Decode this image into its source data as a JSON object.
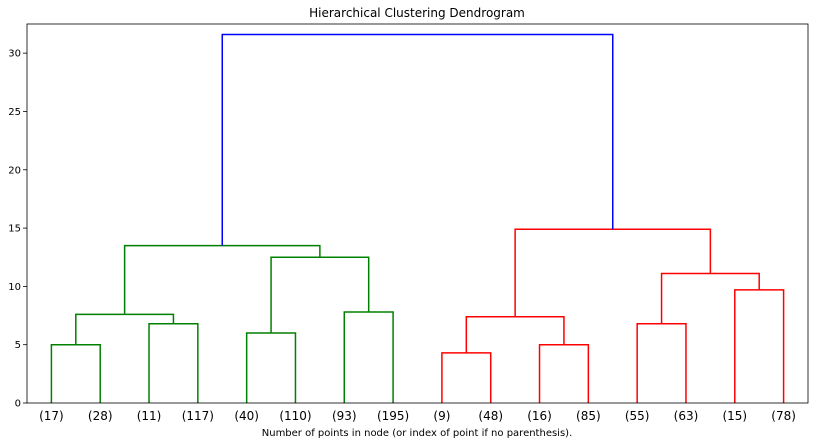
{
  "chart_data": {
    "type": "dendrogram",
    "title": "Hierarchical Clustering Dendrogram",
    "xlabel": "Number of points in node (or index of point if no parenthesis).",
    "ylabel": "",
    "ylim": [
      0,
      32.5
    ],
    "y_ticks": [
      0,
      5,
      10,
      15,
      20,
      25,
      30
    ],
    "grid": false,
    "leaves": [
      "(17)",
      "(28)",
      "(11)",
      "(117)",
      "(40)",
      "(110)",
      "(93)",
      "(195)",
      "(9)",
      "(48)",
      "(16)",
      "(85)",
      "(55)",
      "(63)",
      "(15)",
      "(78)"
    ],
    "links": [
      {
        "left": "leaf:0",
        "right": "leaf:1",
        "height": 5.0,
        "color": "#008000"
      },
      {
        "left": "leaf:2",
        "right": "leaf:3",
        "height": 6.8,
        "color": "#008000"
      },
      {
        "left": "link:0",
        "right": "link:1",
        "height": 7.6,
        "color": "#008000"
      },
      {
        "left": "leaf:4",
        "right": "leaf:5",
        "height": 6.0,
        "color": "#008000"
      },
      {
        "left": "leaf:6",
        "right": "leaf:7",
        "height": 7.8,
        "color": "#008000"
      },
      {
        "left": "link:3",
        "right": "link:4",
        "height": 12.5,
        "color": "#008000"
      },
      {
        "left": "link:2",
        "right": "link:5",
        "height": 13.5,
        "color": "#008000"
      },
      {
        "left": "leaf:8",
        "right": "leaf:9",
        "height": 4.3,
        "color": "#ff0000"
      },
      {
        "left": "leaf:10",
        "right": "leaf:11",
        "height": 5.0,
        "color": "#ff0000"
      },
      {
        "left": "link:7",
        "right": "link:8",
        "height": 7.4,
        "color": "#ff0000"
      },
      {
        "left": "leaf:12",
        "right": "leaf:13",
        "height": 6.8,
        "color": "#ff0000"
      },
      {
        "left": "leaf:14",
        "right": "leaf:15",
        "height": 9.7,
        "color": "#ff0000"
      },
      {
        "left": "link:10",
        "right": "link:11",
        "height": 11.1,
        "color": "#ff0000"
      },
      {
        "left": "link:9",
        "right": "link:12",
        "height": 14.9,
        "color": "#ff0000"
      },
      {
        "left": "link:6",
        "right": "link:13",
        "height": 31.6,
        "color": "#0000ff"
      }
    ]
  }
}
